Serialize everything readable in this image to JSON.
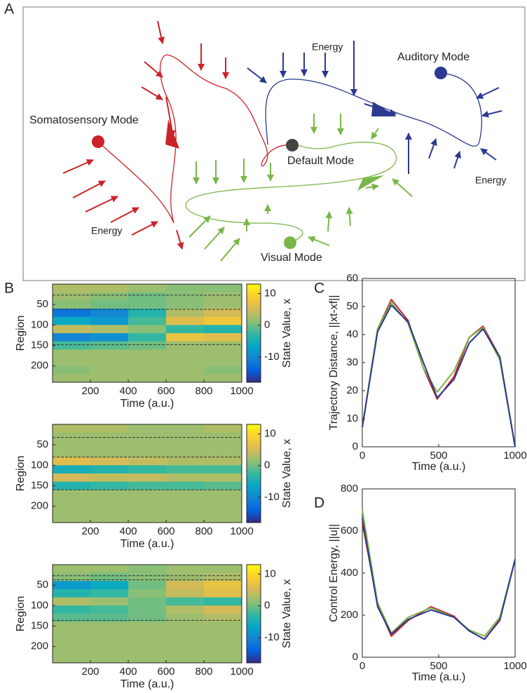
{
  "panel_labels": [
    "A",
    "B",
    "C",
    "D"
  ],
  "diagram": {
    "nodes": [
      {
        "label": "Somatosensory Mode"
      },
      {
        "label": "Default Mode"
      },
      {
        "label": "Auditory Mode"
      },
      {
        "label": "Visual Mode"
      }
    ],
    "energy_labels": [
      "Energy",
      "Energy",
      "Energy"
    ]
  },
  "chart_data": [
    {
      "type": "heatmap",
      "xlabel": "Time (a.u.)",
      "ylabel": "Region",
      "colorbar_label": "State Value, x",
      "xlim": [
        0,
        1000
      ],
      "ylim": [
        0,
        240
      ],
      "y_reversed": true,
      "xticks": [
        200,
        400,
        600,
        800,
        1000
      ],
      "yticks": [
        50,
        100,
        150,
        200
      ],
      "clim": [
        -18,
        13
      ],
      "cticks": [
        10,
        0,
        -10
      ],
      "hlines": [
        27,
        62,
        148
      ],
      "values": [
        [
          3,
          3,
          2,
          1,
          1
        ],
        [
          2,
          1,
          0,
          1,
          2
        ],
        [
          1,
          0,
          0,
          1,
          2
        ],
        [
          -12,
          -10,
          -4,
          3,
          5
        ],
        [
          -6,
          -8,
          -2,
          6,
          8
        ],
        [
          4,
          3,
          1,
          -3,
          -4
        ],
        [
          -10,
          -9,
          -3,
          7,
          6
        ],
        [
          -2,
          -1,
          0,
          2,
          2
        ],
        [
          2,
          2,
          2,
          2,
          2
        ],
        [
          2,
          2,
          2,
          2,
          2
        ],
        [
          1,
          2,
          2,
          2,
          1
        ],
        [
          2,
          2,
          2,
          2,
          2
        ]
      ]
    },
    {
      "type": "heatmap",
      "xlabel": "Time (a.u.)",
      "ylabel": "Region",
      "colorbar_label": "State Value, x",
      "xlim": [
        0,
        1000
      ],
      "ylim": [
        0,
        240
      ],
      "y_reversed": true,
      "xticks": [
        200,
        400,
        600,
        800,
        1000
      ],
      "yticks": [
        50,
        100,
        150,
        200
      ],
      "clim": [
        -18,
        13
      ],
      "cticks": [
        10,
        0,
        -10
      ],
      "hlines": [
        32,
        80,
        160
      ],
      "values": [
        [
          3,
          3,
          2,
          2,
          3
        ],
        [
          2,
          2,
          2,
          2,
          2
        ],
        [
          2,
          2,
          2,
          2,
          2
        ],
        [
          2,
          2,
          2,
          2,
          2
        ],
        [
          6,
          5,
          4,
          3,
          3
        ],
        [
          -5,
          -4,
          -3,
          -2,
          -2
        ],
        [
          5,
          4,
          4,
          3,
          3
        ],
        [
          -4,
          -3,
          -2,
          -2,
          -1
        ],
        [
          2,
          2,
          2,
          2,
          2
        ],
        [
          2,
          2,
          2,
          2,
          2
        ],
        [
          2,
          2,
          2,
          2,
          2
        ],
        [
          2,
          2,
          2,
          2,
          2
        ]
      ]
    },
    {
      "type": "heatmap",
      "xlabel": "Time (a.u.)",
      "ylabel": "Region",
      "colorbar_label": "State Value, x",
      "xlim": [
        0,
        1000
      ],
      "ylim": [
        0,
        240
      ],
      "y_reversed": true,
      "xticks": [
        200,
        400,
        600,
        800,
        1000
      ],
      "yticks": [
        50,
        100,
        150,
        200
      ],
      "clim": [
        -18,
        13
      ],
      "cticks": [
        10,
        0,
        -10
      ],
      "hlines": [
        27,
        37,
        136
      ],
      "values": [
        [
          2,
          2,
          1,
          2,
          2
        ],
        [
          1,
          0,
          1,
          2,
          3
        ],
        [
          -8,
          -6,
          0,
          5,
          7
        ],
        [
          -4,
          -3,
          1,
          4,
          6
        ],
        [
          3,
          2,
          0,
          -2,
          -3
        ],
        [
          -3,
          -2,
          0,
          3,
          5
        ],
        [
          -1,
          -1,
          0,
          2,
          3
        ],
        [
          2,
          2,
          2,
          2,
          2
        ],
        [
          2,
          2,
          2,
          2,
          2
        ],
        [
          2,
          2,
          2,
          2,
          2
        ],
        [
          2,
          2,
          2,
          2,
          2
        ],
        [
          2,
          2,
          2,
          2,
          2
        ]
      ]
    },
    {
      "type": "line",
      "xlabel": "Time (a.u.)",
      "ylabel": "Trajectory Distance, ||xt-xf||",
      "xlim": [
        0,
        1000
      ],
      "ylim": [
        0,
        60
      ],
      "xticks": [
        0,
        500,
        1000
      ],
      "yticks": [
        0,
        10,
        20,
        30,
        40,
        50,
        60
      ],
      "x": [
        0,
        100,
        190,
        300,
        400,
        490,
        600,
        700,
        790,
        900,
        1000
      ],
      "series": [
        {
          "color": "#cc2229",
          "values": [
            7,
            42,
            52.5,
            45,
            28,
            17,
            25,
            39,
            43,
            32,
            0
          ]
        },
        {
          "color": "#7ab648",
          "values": [
            7,
            42,
            51.5,
            44,
            28,
            19.5,
            27,
            39,
            42.5,
            31,
            0
          ]
        },
        {
          "color": "#2b3990",
          "values": [
            7,
            41,
            50.5,
            44.5,
            30,
            17.5,
            24,
            37,
            42,
            32,
            0
          ]
        }
      ]
    },
    {
      "type": "line",
      "xlabel": "Time (a.u.)",
      "ylabel": "Control Energy, ||u||",
      "xlim": [
        0,
        1000
      ],
      "ylim": [
        0,
        800
      ],
      "xticks": [
        0,
        500,
        1000
      ],
      "yticks": [
        0,
        200,
        400,
        600,
        800
      ],
      "x": [
        0,
        100,
        190,
        300,
        450,
        600,
        700,
        800,
        900,
        1000
      ],
      "series": [
        {
          "color": "#cc2229",
          "values": [
            640,
            250,
            100,
            175,
            240,
            195,
            125,
            85,
            180,
            465
          ]
        },
        {
          "color": "#7ab648",
          "values": [
            700,
            260,
            115,
            190,
            235,
            190,
            130,
            100,
            190,
            465
          ]
        },
        {
          "color": "#2b3990",
          "values": [
            660,
            240,
            110,
            180,
            225,
            190,
            125,
            85,
            175,
            465
          ]
        }
      ]
    }
  ]
}
